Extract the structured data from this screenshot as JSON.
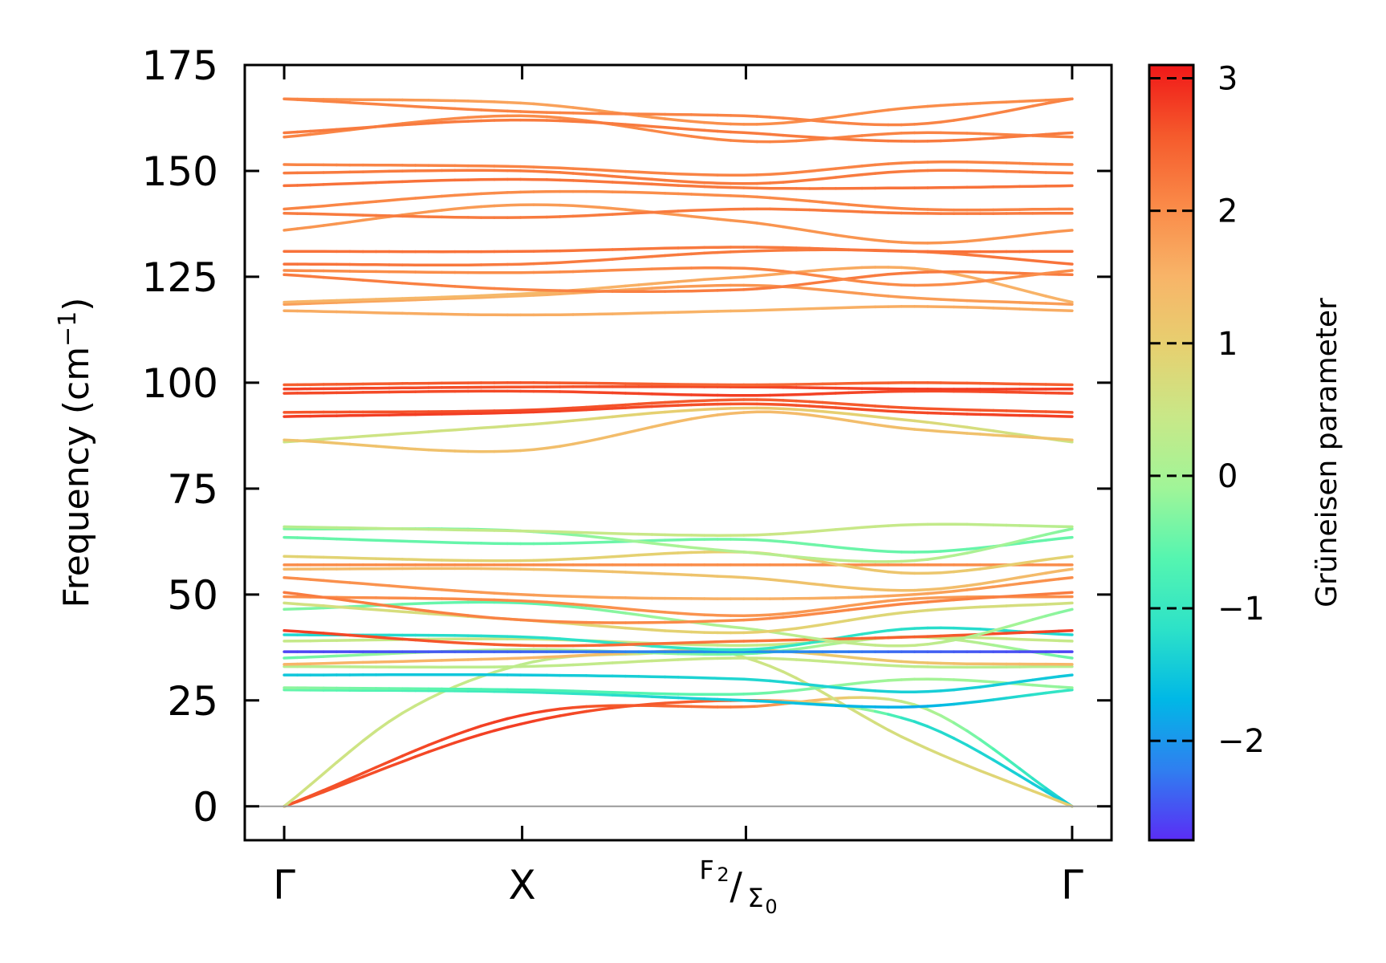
{
  "chart_data": {
    "type": "line",
    "title": "",
    "xlabel": "",
    "ylabel": "Frequency (cm",
    "ylabel_unit_sup": "−1",
    "ylabel_close": ")",
    "ylim": [
      -8,
      175
    ],
    "yticks": [
      {
        "value": 0,
        "label": "0"
      },
      {
        "value": 25,
        "label": "25"
      },
      {
        "value": 50,
        "label": "50"
      },
      {
        "value": 75,
        "label": "75"
      },
      {
        "value": 100,
        "label": "100"
      },
      {
        "value": 125,
        "label": "125"
      },
      {
        "value": 150,
        "label": "150"
      },
      {
        "value": 175,
        "label": "175"
      }
    ],
    "xlim": [
      -0.05,
      1.05
    ],
    "xticks": [
      {
        "pos": 0.0,
        "label": "Γ"
      },
      {
        "pos": 0.302,
        "label": "X"
      },
      {
        "pos": 0.586,
        "label_num": "F",
        "label_num_sub": "2",
        "label_den": "Σ",
        "label_den_sub": "0"
      },
      {
        "pos": 1.0,
        "label": "Γ"
      }
    ],
    "colorbar": {
      "label": "Grüneisen parameter",
      "range": [
        -2.75,
        3.1
      ],
      "ticks": [
        {
          "value": 3,
          "label": "3"
        },
        {
          "value": 2,
          "label": "2"
        },
        {
          "value": 1,
          "label": "1"
        },
        {
          "value": 0,
          "label": "0"
        },
        {
          "value": -1,
          "label": "−1"
        },
        {
          "value": -2,
          "label": "−2"
        }
      ],
      "colors": [
        "#5a2df5",
        "#2f7ff0",
        "#00b8e6",
        "#2de2c8",
        "#55f5b0",
        "#a0f598",
        "#c8e888",
        "#e6d070",
        "#f8b468",
        "#fa8a48",
        "#f55a2c",
        "#f01818"
      ]
    },
    "series": [
      {
        "x": [
          0,
          0.302,
          0.586,
          0.8,
          1
        ],
        "y": [
          0,
          21.5,
          23.5,
          24,
          0
        ],
        "g": [
          2.6,
          2.8,
          2.2,
          0.3,
          -1.5
        ]
      },
      {
        "x": [
          0,
          0.302,
          0.586,
          0.8,
          1
        ],
        "y": [
          0,
          19.5,
          25,
          20,
          0
        ],
        "g": [
          2.6,
          2.8,
          2.4,
          -1.2,
          -1.5
        ]
      },
      {
        "x": [
          0,
          0.15,
          0.302,
          0.45,
          0.586,
          0.8,
          1
        ],
        "y": [
          0,
          22,
          33.5,
          36,
          35,
          15,
          0
        ],
        "g": [
          0.6,
          0.5,
          0.3,
          0.6,
          0.5,
          0.7,
          1.0
        ]
      },
      {
        "x": [
          0,
          0.302,
          0.586,
          0.8,
          1
        ],
        "y": [
          27.5,
          27,
          25,
          23.5,
          27.5
        ],
        "g": [
          -0.5,
          -1.0,
          -1.5,
          -1.8,
          -1.0
        ]
      },
      {
        "x": [
          0,
          0.302,
          0.586,
          0.8,
          1
        ],
        "y": [
          28,
          27.5,
          26.5,
          30,
          28
        ],
        "g": [
          -0.2,
          -0.8,
          -0.5,
          0.0,
          -0.2
        ]
      },
      {
        "x": [
          0,
          0.302,
          0.586,
          0.8,
          1
        ],
        "y": [
          31,
          31,
          30,
          27,
          31
        ],
        "g": [
          -1.5,
          -1.5,
          -1.3,
          -1.4,
          -1.5
        ]
      },
      {
        "x": [
          0,
          0.302,
          0.586,
          0.8,
          1
        ],
        "y": [
          33,
          33,
          35,
          33,
          33
        ],
        "g": [
          0.2,
          0.3,
          0.5,
          0.3,
          0.2
        ]
      },
      {
        "x": [
          0,
          0.302,
          0.586,
          0.8,
          1
        ],
        "y": [
          33.5,
          35,
          37,
          34,
          33.5
        ],
        "g": [
          1.5,
          1.5,
          1.0,
          1.2,
          1.5
        ]
      },
      {
        "x": [
          0,
          0.302,
          0.586,
          0.8,
          1
        ],
        "y": [
          35,
          37,
          36,
          40,
          35
        ],
        "g": [
          -0.5,
          0.3,
          -0.5,
          0.6,
          -0.5
        ]
      },
      {
        "x": [
          0,
          0.302,
          0.586,
          0.8,
          1
        ],
        "y": [
          36.5,
          36.5,
          36.5,
          36.5,
          36.5
        ],
        "g": [
          -2.6,
          -2.4,
          -2.0,
          -2.4,
          -2.6
        ]
      },
      {
        "x": [
          0,
          0.302,
          0.586,
          0.8,
          1
        ],
        "y": [
          39,
          39.5,
          38,
          40,
          39
        ],
        "g": [
          0.4,
          0.5,
          0.4,
          0.5,
          0.4
        ]
      },
      {
        "x": [
          0,
          0.302,
          0.586,
          0.8,
          1
        ],
        "y": [
          40.5,
          40,
          37,
          42,
          40.5
        ],
        "g": [
          -1.3,
          -1.2,
          -1.0,
          -1.2,
          -1.3
        ]
      },
      {
        "x": [
          0,
          0.302,
          0.586,
          0.8,
          1
        ],
        "y": [
          41.5,
          38,
          39,
          40,
          41.5
        ],
        "g": [
          2.8,
          2.5,
          2.2,
          2.5,
          2.8
        ]
      },
      {
        "x": [
          0,
          0.302,
          0.586,
          0.8,
          1
        ],
        "y": [
          46.5,
          48,
          42,
          38,
          46.5
        ],
        "g": [
          -0.3,
          -0.6,
          0.2,
          0.4,
          -0.3
        ]
      },
      {
        "x": [
          0,
          0.302,
          0.586,
          0.8,
          1
        ],
        "y": [
          48,
          44,
          41,
          46,
          48
        ],
        "g": [
          0.6,
          0.8,
          1.0,
          0.8,
          0.6
        ]
      },
      {
        "x": [
          0,
          0.302,
          0.586,
          0.8,
          1
        ],
        "y": [
          49.5,
          48.5,
          45,
          49,
          49.5
        ],
        "g": [
          2.0,
          2.0,
          1.9,
          1.8,
          2.0
        ]
      },
      {
        "x": [
          0,
          0.302,
          0.586,
          0.8,
          1
        ],
        "y": [
          50.5,
          44,
          44,
          48,
          50.5
        ],
        "g": [
          2.2,
          2.1,
          2.0,
          2.1,
          2.2
        ]
      },
      {
        "x": [
          0,
          0.302,
          0.586,
          0.8,
          1
        ],
        "y": [
          54,
          50,
          49,
          50,
          54
        ],
        "g": [
          2.0,
          1.8,
          1.5,
          1.7,
          2.0
        ]
      },
      {
        "x": [
          0,
          0.302,
          0.586,
          0.8,
          1
        ],
        "y": [
          56,
          56,
          54,
          51,
          56
        ],
        "g": [
          1.4,
          1.3,
          1.2,
          1.3,
          1.4
        ]
      },
      {
        "x": [
          0,
          0.302,
          0.586,
          0.8,
          1
        ],
        "y": [
          57,
          57,
          57,
          57,
          57
        ],
        "g": [
          2.0,
          2.0,
          2.0,
          2.0,
          2.0
        ]
      },
      {
        "x": [
          0,
          0.302,
          0.586,
          0.8,
          1
        ],
        "y": [
          59,
          58,
          60,
          55,
          59
        ],
        "g": [
          0.9,
          0.9,
          1.0,
          1.2,
          0.9
        ]
      },
      {
        "x": [
          0,
          0.302,
          0.586,
          0.8,
          1
        ],
        "y": [
          63.5,
          62,
          63,
          60,
          63.5
        ],
        "g": [
          -0.5,
          -0.5,
          -0.4,
          -0.5,
          -0.5
        ]
      },
      {
        "x": [
          0,
          0.302,
          0.586,
          0.8,
          1
        ],
        "y": [
          65.5,
          65,
          60,
          58,
          65.5
        ],
        "g": [
          -0.3,
          -0.4,
          0.2,
          0.3,
          -0.3
        ]
      },
      {
        "x": [
          0,
          0.302,
          0.586,
          0.8,
          1
        ],
        "y": [
          66,
          65,
          64,
          66.5,
          66
        ],
        "g": [
          0.2,
          0.4,
          0.5,
          0.4,
          0.2
        ]
      },
      {
        "x": [
          0,
          0.302,
          0.586,
          0.8,
          1
        ],
        "y": [
          86,
          90,
          94,
          91,
          86
        ],
        "g": [
          0.5,
          0.6,
          1.2,
          0.8,
          0.5
        ]
      },
      {
        "x": [
          0,
          0.302,
          0.586,
          0.8,
          1
        ],
        "y": [
          86.5,
          84,
          93,
          89,
          86.5
        ],
        "g": [
          1.2,
          1.3,
          1.4,
          1.3,
          1.2
        ]
      },
      {
        "x": [
          0,
          0.302,
          0.586,
          0.8,
          1
        ],
        "y": [
          92,
          93,
          95,
          93,
          92
        ],
        "g": [
          2.8,
          2.8,
          2.6,
          2.7,
          2.8
        ]
      },
      {
        "x": [
          0,
          0.302,
          0.586,
          0.8,
          1
        ],
        "y": [
          93,
          93.5,
          96,
          94,
          93
        ],
        "g": [
          2.6,
          2.7,
          2.5,
          2.6,
          2.6
        ]
      },
      {
        "x": [
          0,
          0.302,
          0.586,
          0.8,
          1
        ],
        "y": [
          97.5,
          98,
          97,
          98,
          97.5
        ],
        "g": [
          2.7,
          2.7,
          2.8,
          2.7,
          2.7
        ]
      },
      {
        "x": [
          0,
          0.302,
          0.586,
          0.8,
          1
        ],
        "y": [
          98.5,
          99,
          99,
          98.5,
          98.5
        ],
        "g": [
          2.8,
          2.6,
          2.7,
          2.8,
          2.8
        ]
      },
      {
        "x": [
          0,
          0.302,
          0.586,
          0.8,
          1
        ],
        "y": [
          99.5,
          100,
          99.5,
          100,
          99.5
        ],
        "g": [
          2.5,
          2.6,
          2.4,
          2.5,
          2.5
        ]
      },
      {
        "x": [
          0,
          0.302,
          0.586,
          0.8,
          1
        ],
        "y": [
          117,
          116,
          117,
          118,
          117
        ],
        "g": [
          1.6,
          1.6,
          1.5,
          1.6,
          1.6
        ]
      },
      {
        "x": [
          0,
          0.302,
          0.586,
          0.8,
          1
        ],
        "y": [
          118.5,
          120.5,
          123,
          120,
          118.5
        ],
        "g": [
          1.8,
          1.5,
          1.9,
          1.8,
          1.8
        ]
      },
      {
        "x": [
          0,
          0.302,
          0.586,
          0.8,
          1
        ],
        "y": [
          119,
          121,
          125,
          127,
          119
        ],
        "g": [
          1.5,
          1.4,
          1.7,
          1.6,
          1.5
        ]
      },
      {
        "x": [
          0,
          0.302,
          0.586,
          0.8,
          1
        ],
        "y": [
          125.5,
          122,
          122,
          126,
          125.5
        ],
        "g": [
          2.2,
          2.1,
          2.2,
          2.2,
          2.2
        ]
      },
      {
        "x": [
          0,
          0.302,
          0.586,
          0.8,
          1
        ],
        "y": [
          126.5,
          126,
          127,
          123,
          126.5
        ],
        "g": [
          2.0,
          2.0,
          2.1,
          2.0,
          2.0
        ]
      },
      {
        "x": [
          0,
          0.302,
          0.586,
          0.8,
          1
        ],
        "y": [
          128,
          128,
          131,
          131,
          128
        ],
        "g": [
          2.3,
          2.2,
          2.2,
          2.2,
          2.3
        ]
      },
      {
        "x": [
          0,
          0.302,
          0.586,
          0.8,
          1
        ],
        "y": [
          131,
          131,
          132,
          131,
          131
        ],
        "g": [
          2.3,
          2.3,
          2.2,
          2.3,
          2.3
        ]
      },
      {
        "x": [
          0,
          0.302,
          0.586,
          0.8,
          1
        ],
        "y": [
          136,
          142,
          138,
          133,
          136
        ],
        "g": [
          1.9,
          1.8,
          1.9,
          1.9,
          1.9
        ]
      },
      {
        "x": [
          0,
          0.302,
          0.586,
          0.8,
          1
        ],
        "y": [
          140,
          139,
          141,
          140,
          140
        ],
        "g": [
          2.2,
          2.2,
          2.2,
          2.2,
          2.2
        ]
      },
      {
        "x": [
          0,
          0.302,
          0.586,
          0.8,
          1
        ],
        "y": [
          141,
          145,
          144,
          141,
          141
        ],
        "g": [
          2.1,
          2.0,
          2.0,
          2.1,
          2.1
        ]
      },
      {
        "x": [
          0,
          0.302,
          0.586,
          0.8,
          1
        ],
        "y": [
          146.5,
          148,
          146,
          146,
          146.5
        ],
        "g": [
          2.3,
          2.3,
          2.2,
          2.3,
          2.3
        ]
      },
      {
        "x": [
          0,
          0.302,
          0.586,
          0.8,
          1
        ],
        "y": [
          149.5,
          150,
          147,
          150,
          149.5
        ],
        "g": [
          2.2,
          2.2,
          2.2,
          2.2,
          2.2
        ]
      },
      {
        "x": [
          0,
          0.302,
          0.586,
          0.8,
          1
        ],
        "y": [
          151.5,
          151,
          149,
          152,
          151.5
        ],
        "g": [
          2.1,
          2.1,
          2.1,
          2.1,
          2.1
        ]
      },
      {
        "x": [
          0,
          0.302,
          0.586,
          0.8,
          1
        ],
        "y": [
          158,
          163,
          157,
          159,
          158
        ],
        "g": [
          2.1,
          2.0,
          2.1,
          2.1,
          2.1
        ]
      },
      {
        "x": [
          0,
          0.302,
          0.586,
          0.8,
          1
        ],
        "y": [
          159,
          162,
          159,
          157,
          159
        ],
        "g": [
          2.2,
          2.2,
          2.2,
          2.2,
          2.2
        ]
      },
      {
        "x": [
          0,
          0.302,
          0.586,
          0.8,
          1
        ],
        "y": [
          167,
          166,
          161,
          165,
          167
        ],
        "g": [
          2.0,
          1.7,
          2.0,
          2.0,
          2.0
        ]
      },
      {
        "x": [
          0,
          0.302,
          0.586,
          0.8,
          1
        ],
        "y": [
          167,
          164,
          163,
          161,
          167
        ],
        "g": [
          2.1,
          2.1,
          2.1,
          2.1,
          2.1
        ]
      }
    ]
  }
}
